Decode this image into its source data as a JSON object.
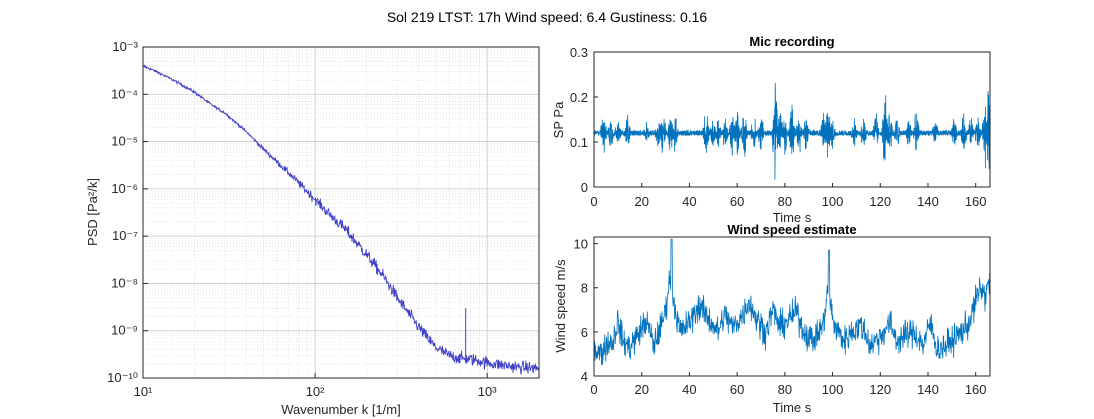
{
  "figure_title": "Sol 219 LTST: 17h Wind speed: 6.4 Gustiness: 0.16",
  "colors": {
    "psd_line": "#4040c8",
    "signal_line": "#0072bd",
    "axis": "#262626",
    "grid": "#d9d9d9"
  },
  "chart_data": [
    {
      "type": "line",
      "title": "",
      "xlabel": "Wavenumber k [1/m]",
      "ylabel": "PSD [Pa²/k]",
      "xscale": "log",
      "yscale": "log",
      "xlim": [
        10,
        2000
      ],
      "ylim": [
        1e-10,
        0.001
      ],
      "grid": true,
      "minor_grid": true,
      "x_tick_labels": [
        "10¹",
        "10²",
        "10³"
      ],
      "y_tick_labels": [
        "10⁻¹⁰",
        "10⁻⁹",
        "10⁻⁸",
        "10⁻⁷",
        "10⁻⁶",
        "10⁻⁵",
        "10⁻⁴",
        "10⁻³"
      ],
      "x_ticks": [
        10,
        100,
        1000
      ],
      "y_ticks": [
        -10,
        -9,
        -8,
        -7,
        -6,
        -5,
        -4,
        -3
      ],
      "series": [
        {
          "x": [
            10,
            12,
            15,
            20,
            25,
            30,
            40,
            50,
            70,
            100,
            120,
            150,
            200,
            250,
            300,
            350,
            400,
            450,
            500,
            600,
            700,
            750,
            800,
            900,
            1000,
            1200,
            1500,
            2000
          ],
          "y": [
            0.0004,
            0.0003,
            0.0002,
            0.00011,
            6e-05,
            4e-05,
            1.6e-05,
            7e-06,
            2.2e-06,
            6e-07,
            3e-07,
            1.4e-07,
            4e-08,
            1.4e-08,
            5e-09,
            2.3e-09,
            1.2e-09,
            7e-10,
            4.5e-10,
            3e-10,
            2.6e-10,
            3e-09,
            2.5e-10,
            2.3e-10,
            2.1e-10,
            1.9e-10,
            1.7e-10,
            1.6e-10
          ]
        }
      ]
    },
    {
      "type": "line",
      "title": "Mic recording",
      "xlabel": "Time s",
      "ylabel": "SP Pa",
      "xlim": [
        0,
        166
      ],
      "ylim": [
        0,
        0.3
      ],
      "x_ticks": [
        0,
        20,
        40,
        60,
        80,
        100,
        120,
        140,
        160
      ],
      "y_ticks": [
        0,
        0.1,
        0.2,
        0.3
      ],
      "x_tick_labels": [
        "0",
        "20",
        "40",
        "60",
        "80",
        "100",
        "120",
        "140",
        "160"
      ],
      "y_tick_labels": [
        "0",
        "0.1",
        "0.2",
        "0.3"
      ],
      "baseline": 0.12,
      "bursts": [
        [
          4,
          0.06
        ],
        [
          7,
          0.05
        ],
        [
          10,
          0.04
        ],
        [
          14,
          0.05
        ],
        [
          22,
          0.03
        ],
        [
          27,
          0.05
        ],
        [
          29,
          0.08
        ],
        [
          32,
          0.06
        ],
        [
          34,
          0.05
        ],
        [
          47,
          0.07
        ],
        [
          50,
          0.04
        ],
        [
          52,
          0.05
        ],
        [
          55,
          0.05
        ],
        [
          58,
          0.06
        ],
        [
          60,
          0.06
        ],
        [
          63,
          0.07
        ],
        [
          67,
          0.05
        ],
        [
          70,
          0.06
        ],
        [
          76,
          0.14
        ],
        [
          78,
          0.07
        ],
        [
          80,
          0.06
        ],
        [
          83,
          0.08
        ],
        [
          86,
          0.06
        ],
        [
          89,
          0.05
        ],
        [
          96,
          0.06
        ],
        [
          98,
          0.08
        ],
        [
          100,
          0.05
        ],
        [
          109,
          0.04
        ],
        [
          113,
          0.05
        ],
        [
          118,
          0.06
        ],
        [
          122,
          0.11
        ],
        [
          124,
          0.06
        ],
        [
          127,
          0.05
        ],
        [
          132,
          0.05
        ],
        [
          135,
          0.06
        ],
        [
          143,
          0.04
        ],
        [
          151,
          0.05
        ],
        [
          155,
          0.05
        ],
        [
          158,
          0.05
        ],
        [
          161,
          0.06
        ],
        [
          164,
          0.09
        ],
        [
          165.5,
          0.12
        ]
      ]
    },
    {
      "type": "line",
      "title": "Wind speed estimate",
      "xlabel": "Time s",
      "ylabel": "Wind speed m/s",
      "xlim": [
        0,
        166
      ],
      "ylim": [
        4,
        10.3
      ],
      "x_ticks": [
        0,
        20,
        40,
        60,
        80,
        100,
        120,
        140,
        160
      ],
      "y_ticks": [
        4,
        6,
        8,
        10
      ],
      "x_tick_labels": [
        "0",
        "20",
        "40",
        "60",
        "80",
        "100",
        "120",
        "140",
        "160"
      ],
      "y_tick_labels": [
        "4",
        "6",
        "8",
        "10"
      ],
      "envelope": [
        [
          0,
          5.3
        ],
        [
          3,
          5.0
        ],
        [
          5,
          5.4
        ],
        [
          8,
          5.6
        ],
        [
          10,
          6.5
        ],
        [
          12,
          5.6
        ],
        [
          15,
          5.3
        ],
        [
          18,
          5.8
        ],
        [
          22,
          6.5
        ],
        [
          25,
          5.4
        ],
        [
          28,
          6.2
        ],
        [
          30,
          7.0
        ],
        [
          32,
          8.6
        ],
        [
          34,
          7.0
        ],
        [
          36,
          6.0
        ],
        [
          40,
          6.4
        ],
        [
          44,
          7.2
        ],
        [
          48,
          6.6
        ],
        [
          52,
          6.0
        ],
        [
          55,
          6.8
        ],
        [
          58,
          6.2
        ],
        [
          62,
          6.7
        ],
        [
          65,
          7.4
        ],
        [
          68,
          6.6
        ],
        [
          72,
          6.0
        ],
        [
          75,
          7.0
        ],
        [
          78,
          6.2
        ],
        [
          82,
          6.6
        ],
        [
          85,
          6.9
        ],
        [
          88,
          6.0
        ],
        [
          92,
          5.6
        ],
        [
          96,
          6.3
        ],
        [
          98,
          7.8
        ],
        [
          101,
          6.2
        ],
        [
          105,
          5.6
        ],
        [
          108,
          6.0
        ],
        [
          112,
          6.3
        ],
        [
          116,
          5.4
        ],
        [
          120,
          5.8
        ],
        [
          124,
          6.4
        ],
        [
          127,
          5.6
        ],
        [
          130,
          5.8
        ],
        [
          134,
          6.0
        ],
        [
          138,
          5.4
        ],
        [
          141,
          6.4
        ],
        [
          144,
          5.2
        ],
        [
          148,
          5.4
        ],
        [
          152,
          5.8
        ],
        [
          156,
          6.2
        ],
        [
          158,
          6.6
        ],
        [
          160,
          7.4
        ],
        [
          162,
          8.0
        ],
        [
          164,
          7.6
        ],
        [
          166,
          8.4
        ]
      ]
    }
  ]
}
